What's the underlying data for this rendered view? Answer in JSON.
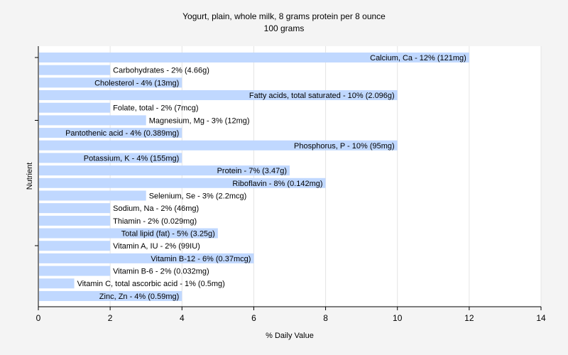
{
  "chart_data": {
    "type": "bar",
    "orientation": "horizontal",
    "title": "Yogurt, plain, whole milk, 8 grams protein per 8 ounce",
    "subtitle": "100 grams",
    "xlabel": "% Daily Value",
    "ylabel": "Nutrient",
    "xlim": [
      0,
      14
    ],
    "xticks": [
      0,
      2,
      4,
      6,
      8,
      10,
      12,
      14
    ],
    "grid": true,
    "bar_color": "#c0d8ff",
    "categories": [
      "Calcium, Ca",
      "Carbohydrates",
      "Cholesterol",
      "Fatty acids, total saturated",
      "Folate, total",
      "Magnesium, Mg",
      "Pantothenic acid",
      "Phosphorus, P",
      "Potassium, K",
      "Protein",
      "Riboflavin",
      "Selenium, Se",
      "Sodium, Na",
      "Thiamin",
      "Total lipid (fat)",
      "Vitamin A, IU",
      "Vitamin B-12",
      "Vitamin B-6",
      "Vitamin C, total ascorbic acid",
      "Zinc, Zn"
    ],
    "values": [
      12,
      2,
      4,
      10,
      2,
      3,
      4,
      10,
      4,
      7,
      8,
      3,
      2,
      2,
      5,
      2,
      6,
      2,
      1,
      4
    ],
    "labels": [
      "Calcium, Ca - 12% (121mg)",
      "Carbohydrates - 2% (4.66g)",
      "Cholesterol - 4% (13mg)",
      "Fatty acids, total saturated - 10% (2.096g)",
      "Folate, total - 2% (7mcg)",
      "Magnesium, Mg - 3% (12mg)",
      "Pantothenic acid - 4% (0.389mg)",
      "Phosphorus, P - 10% (95mg)",
      "Potassium, K - 4% (155mg)",
      "Protein - 7% (3.47g)",
      "Riboflavin - 8% (0.142mg)",
      "Selenium, Se - 3% (2.2mcg)",
      "Sodium, Na - 2% (46mg)",
      "Thiamin - 2% (0.029mg)",
      "Total lipid (fat) - 5% (3.25g)",
      "Vitamin A, IU - 2% (99IU)",
      "Vitamin B-12 - 6% (0.37mcg)",
      "Vitamin B-6 - 2% (0.032mg)",
      "Vitamin C, total ascorbic acid - 1% (0.5mg)",
      "Zinc, Zn - 4% (0.59mg)"
    ]
  }
}
